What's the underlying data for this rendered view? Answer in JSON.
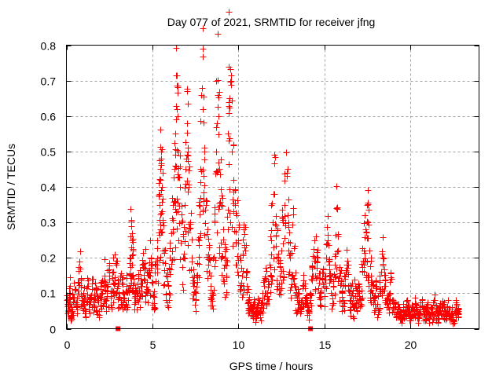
{
  "chart_data": {
    "type": "scatter",
    "title": "Day 077 of 2021, SRMTID for receiver jfng",
    "xlabel": "GPS time / hours",
    "ylabel": "SRMTID / TECUs",
    "xlim": [
      0,
      24
    ],
    "ylim": [
      0,
      0.8
    ],
    "xticks": [
      0,
      5,
      10,
      15,
      20
    ],
    "xtick_labels": [
      "0",
      "5",
      "10",
      "15",
      "20"
    ],
    "yticks": [
      0,
      0.1,
      0.2,
      0.3,
      0.4,
      0.5,
      0.6,
      0.7,
      0.8
    ],
    "ytick_labels": [
      "0",
      "0.1",
      "0.2",
      "0.3",
      "0.4",
      "0.5",
      "0.6",
      "0.7",
      "0.8"
    ],
    "grid": true,
    "legend": "none",
    "marker": "plus",
    "color": "#ff0000",
    "series": [
      {
        "name": "SRMTID",
        "envelope_note": "representative sampled points; dense cloud roughly 0.03-0.15 baseline with activity peaks 5-10h and 12-18h",
        "points": [
          [
            0.0,
            0.08
          ],
          [
            0.1,
            0.05
          ],
          [
            0.15,
            0.1
          ],
          [
            0.2,
            0.12
          ],
          [
            0.25,
            0.03
          ],
          [
            0.3,
            0.07
          ],
          [
            0.4,
            0.09
          ],
          [
            0.5,
            0.11
          ],
          [
            0.6,
            0.06
          ],
          [
            0.7,
            0.13
          ],
          [
            0.8,
            0.17
          ],
          [
            0.9,
            0.08
          ],
          [
            1.0,
            0.1
          ],
          [
            1.1,
            0.05
          ],
          [
            1.2,
            0.12
          ],
          [
            1.3,
            0.07
          ],
          [
            1.4,
            0.09
          ],
          [
            1.5,
            0.14
          ],
          [
            1.6,
            0.06
          ],
          [
            1.7,
            0.11
          ],
          [
            1.8,
            0.08
          ],
          [
            1.9,
            0.05
          ],
          [
            2.0,
            0.12
          ],
          [
            2.1,
            0.1
          ],
          [
            2.2,
            0.15
          ],
          [
            2.3,
            0.08
          ],
          [
            2.4,
            0.12
          ],
          [
            2.5,
            0.16
          ],
          [
            2.6,
            0.1
          ],
          [
            2.7,
            0.13
          ],
          [
            2.8,
            0.21
          ],
          [
            2.9,
            0.18
          ],
          [
            3.0,
            0.12
          ],
          [
            3.1,
            0.09
          ],
          [
            3.2,
            0.14
          ],
          [
            3.3,
            0.1
          ],
          [
            3.4,
            0.06
          ],
          [
            3.5,
            0.12
          ],
          [
            3.6,
            0.11
          ],
          [
            3.7,
            0.2
          ],
          [
            3.75,
            0.29
          ],
          [
            3.8,
            0.25
          ],
          [
            3.85,
            0.22
          ],
          [
            3.9,
            0.13
          ],
          [
            4.0,
            0.1
          ],
          [
            4.1,
            0.08
          ],
          [
            4.2,
            0.15
          ],
          [
            4.3,
            0.12
          ],
          [
            4.4,
            0.18
          ],
          [
            4.5,
            0.14
          ],
          [
            4.6,
            0.17
          ],
          [
            4.7,
            0.1
          ],
          [
            4.8,
            0.15
          ],
          [
            4.9,
            0.2
          ],
          [
            5.0,
            0.13
          ],
          [
            5.1,
            0.09
          ],
          [
            5.2,
            0.18
          ],
          [
            5.3,
            0.25
          ],
          [
            5.4,
            0.35
          ],
          [
            5.45,
            0.45
          ],
          [
            5.5,
            0.5
          ],
          [
            5.55,
            0.4
          ],
          [
            5.6,
            0.3
          ],
          [
            5.7,
            0.22
          ],
          [
            5.8,
            0.15
          ],
          [
            5.9,
            0.12
          ],
          [
            6.0,
            0.2
          ],
          [
            6.1,
            0.27
          ],
          [
            6.2,
            0.35
          ],
          [
            6.3,
            0.45
          ],
          [
            6.35,
            0.55
          ],
          [
            6.4,
            0.62
          ],
          [
            6.45,
            0.6
          ],
          [
            6.5,
            0.5
          ],
          [
            6.6,
            0.4
          ],
          [
            6.7,
            0.3
          ],
          [
            6.8,
            0.2
          ],
          [
            6.9,
            0.35
          ],
          [
            7.0,
            0.58
          ],
          [
            7.05,
            0.5
          ],
          [
            7.1,
            0.4
          ],
          [
            7.2,
            0.3
          ],
          [
            7.3,
            0.2
          ],
          [
            7.4,
            0.12
          ],
          [
            7.5,
            0.1
          ],
          [
            7.6,
            0.15
          ],
          [
            7.7,
            0.25
          ],
          [
            7.8,
            0.45
          ],
          [
            7.9,
            0.68
          ],
          [
            7.95,
            0.62
          ],
          [
            8.0,
            0.5
          ],
          [
            8.1,
            0.35
          ],
          [
            8.2,
            0.28
          ],
          [
            8.3,
            0.2
          ],
          [
            8.4,
            0.12
          ],
          [
            8.5,
            0.1
          ],
          [
            8.6,
            0.3
          ],
          [
            8.7,
            0.5
          ],
          [
            8.8,
            0.66
          ],
          [
            8.85,
            0.6
          ],
          [
            8.9,
            0.45
          ],
          [
            9.0,
            0.35
          ],
          [
            9.1,
            0.28
          ],
          [
            9.2,
            0.2
          ],
          [
            9.3,
            0.15
          ],
          [
            9.4,
            0.55
          ],
          [
            9.45,
            0.74
          ],
          [
            9.5,
            0.65
          ],
          [
            9.6,
            0.5
          ],
          [
            9.7,
            0.42
          ],
          [
            9.8,
            0.35
          ],
          [
            9.9,
            0.32
          ],
          [
            10.0,
            0.25
          ],
          [
            10.1,
            0.2
          ],
          [
            10.2,
            0.15
          ],
          [
            10.3,
            0.28
          ],
          [
            10.4,
            0.22
          ],
          [
            10.5,
            0.12
          ],
          [
            10.6,
            0.08
          ],
          [
            10.7,
            0.06
          ],
          [
            10.8,
            0.05
          ],
          [
            10.9,
            0.07
          ],
          [
            11.0,
            0.04
          ],
          [
            11.1,
            0.06
          ],
          [
            11.2,
            0.08
          ],
          [
            11.3,
            0.05
          ],
          [
            11.4,
            0.1
          ],
          [
            11.5,
            0.12
          ],
          [
            11.6,
            0.14
          ],
          [
            11.7,
            0.1
          ],
          [
            11.8,
            0.18
          ],
          [
            11.9,
            0.25
          ],
          [
            12.0,
            0.3
          ],
          [
            12.1,
            0.38
          ],
          [
            12.2,
            0.26
          ],
          [
            12.3,
            0.2
          ],
          [
            12.4,
            0.15
          ],
          [
            12.5,
            0.22
          ],
          [
            12.6,
            0.3
          ],
          [
            12.7,
            0.35
          ],
          [
            12.8,
            0.44
          ],
          [
            12.9,
            0.3
          ],
          [
            13.0,
            0.2
          ],
          [
            13.1,
            0.15
          ],
          [
            13.2,
            0.34
          ],
          [
            13.3,
            0.12
          ],
          [
            13.4,
            0.08
          ],
          [
            13.5,
            0.1
          ],
          [
            13.6,
            0.06
          ],
          [
            13.7,
            0.08
          ],
          [
            13.8,
            0.12
          ],
          [
            13.9,
            0.09
          ],
          [
            14.0,
            0.06
          ],
          [
            14.1,
            0.05
          ],
          [
            14.2,
            0.1
          ],
          [
            14.3,
            0.15
          ],
          [
            14.4,
            0.2
          ],
          [
            14.5,
            0.26
          ],
          [
            14.6,
            0.2
          ],
          [
            14.7,
            0.13
          ],
          [
            14.8,
            0.1
          ],
          [
            14.9,
            0.14
          ],
          [
            15.0,
            0.12
          ],
          [
            15.1,
            0.2
          ],
          [
            15.2,
            0.25
          ],
          [
            15.3,
            0.18
          ],
          [
            15.4,
            0.1
          ],
          [
            15.5,
            0.12
          ],
          [
            15.6,
            0.18
          ],
          [
            15.7,
            0.34
          ],
          [
            15.8,
            0.22
          ],
          [
            15.9,
            0.15
          ],
          [
            16.0,
            0.1
          ],
          [
            16.1,
            0.08
          ],
          [
            16.2,
            0.14
          ],
          [
            16.3,
            0.18
          ],
          [
            16.4,
            0.12
          ],
          [
            16.5,
            0.08
          ],
          [
            16.6,
            0.1
          ],
          [
            16.7,
            0.06
          ],
          [
            16.8,
            0.12
          ],
          [
            16.9,
            0.08
          ],
          [
            17.0,
            0.1
          ],
          [
            17.1,
            0.07
          ],
          [
            17.2,
            0.16
          ],
          [
            17.3,
            0.22
          ],
          [
            17.4,
            0.28
          ],
          [
            17.5,
            0.35
          ],
          [
            17.55,
            0.3
          ],
          [
            17.6,
            0.22
          ],
          [
            17.7,
            0.15
          ],
          [
            17.8,
            0.1
          ],
          [
            17.9,
            0.08
          ],
          [
            18.0,
            0.12
          ],
          [
            18.1,
            0.07
          ],
          [
            18.2,
            0.1
          ],
          [
            18.3,
            0.16
          ],
          [
            18.4,
            0.2
          ],
          [
            18.5,
            0.12
          ],
          [
            18.6,
            0.08
          ],
          [
            18.7,
            0.06
          ],
          [
            18.8,
            0.1
          ],
          [
            18.9,
            0.14
          ],
          [
            19.0,
            0.08
          ],
          [
            19.1,
            0.06
          ],
          [
            19.2,
            0.04
          ],
          [
            19.3,
            0.07
          ],
          [
            19.4,
            0.05
          ],
          [
            19.5,
            0.03
          ],
          [
            19.6,
            0.06
          ],
          [
            19.7,
            0.04
          ],
          [
            19.8,
            0.08
          ],
          [
            19.9,
            0.05
          ],
          [
            20.0,
            0.03
          ],
          [
            20.1,
            0.06
          ],
          [
            20.2,
            0.04
          ],
          [
            20.3,
            0.07
          ],
          [
            20.4,
            0.05
          ],
          [
            20.5,
            0.03
          ],
          [
            20.6,
            0.06
          ],
          [
            20.7,
            0.08
          ],
          [
            20.8,
            0.04
          ],
          [
            20.9,
            0.05
          ],
          [
            21.0,
            0.07
          ],
          [
            21.1,
            0.03
          ],
          [
            21.2,
            0.06
          ],
          [
            21.3,
            0.04
          ],
          [
            21.4,
            0.08
          ],
          [
            21.5,
            0.05
          ],
          [
            21.6,
            0.03
          ],
          [
            21.7,
            0.06
          ],
          [
            21.8,
            0.04
          ],
          [
            21.9,
            0.07
          ],
          [
            22.0,
            0.05
          ],
          [
            22.1,
            0.03
          ],
          [
            22.2,
            0.08
          ],
          [
            22.3,
            0.04
          ],
          [
            22.4,
            0.06
          ],
          [
            22.5,
            0.02
          ],
          [
            22.6,
            0.05
          ],
          [
            22.7,
            0.07
          ],
          [
            22.8,
            0.04
          ]
        ]
      }
    ],
    "zero_markers": [
      3.0,
      14.2
    ]
  }
}
